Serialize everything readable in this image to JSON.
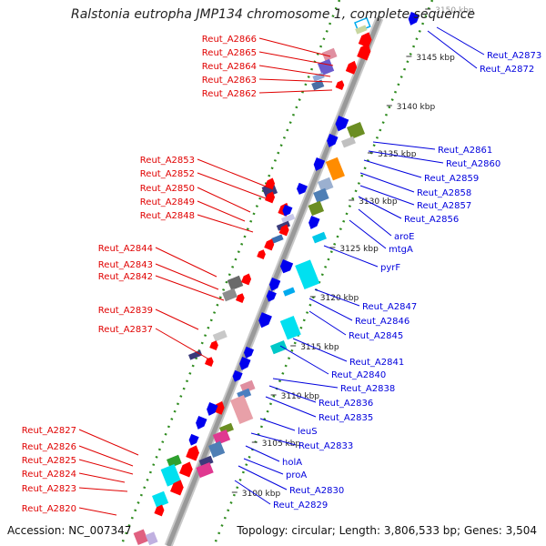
{
  "title": "Ralstonia eutropha JMP134 chromosome 1, complete sequence",
  "footer": {
    "accession": "Accession: NC_007347",
    "topology": "Topology: circular; Length: 3,806,533 bp; Genes: 3,504"
  },
  "colors": {
    "left_label": "#e00000",
    "right_label": "#0000dd",
    "backbone": "#999999",
    "dots": "#2e8b1e"
  },
  "ticks": [
    "3150 kbp",
    "3145 kbp",
    "3140 kbp",
    "3135 kbp",
    "3130 kbp",
    "3125 kbp",
    "3120 kbp",
    "3115 kbp",
    "3110 kbp",
    "3105 kbp",
    "3100 kbp"
  ],
  "left_labels": [
    "Reut_A2866",
    "Reut_A2865",
    "Reut_A2864",
    "Reut_A2863",
    "Reut_A2862",
    "Reut_A2853",
    "Reut_A2852",
    "Reut_A2850",
    "Reut_A2849",
    "Reut_A2848",
    "Reut_A2844",
    "Reut_A2843",
    "Reut_A2842",
    "Reut_A2839",
    "Reut_A2837",
    "Reut_A2827",
    "Reut_A2826",
    "Reut_A2825",
    "Reut_A2824",
    "Reut_A2823",
    "Reut_A2820"
  ],
  "right_labels": [
    "Reut_A2873",
    "Reut_A2872",
    "Reut_A2861",
    "Reut_A2860",
    "Reut_A2859",
    "Reut_A2858",
    "Reut_A2857",
    "Reut_A2856",
    "aroE",
    "mtgA",
    "pyrF",
    "Reut_A2847",
    "Reut_A2846",
    "Reut_A2845",
    "Reut_A2841",
    "Reut_A2840",
    "Reut_A2838",
    "Reut_A2836",
    "Reut_A2835",
    "leuS",
    "Reut_A2833",
    "holA",
    "proA",
    "Reut_A2830",
    "Reut_A2829"
  ]
}
